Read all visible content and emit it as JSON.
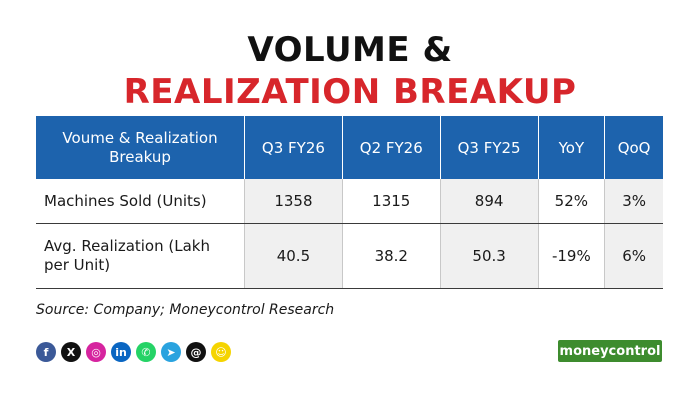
{
  "header": {
    "title_line1": "VOLUME &",
    "title_line2": "REALIZATION BREAKUP"
  },
  "chart_data": {
    "type": "table",
    "columns": [
      "Voume & Realization Breakup",
      "Q3 FY26",
      "Q2 FY26",
      "Q3 FY25",
      "YoY",
      "QoQ"
    ],
    "rows": [
      {
        "label": "Machines Sold (Units)",
        "values": [
          "1358",
          "1315",
          "894",
          "52%",
          "3%"
        ]
      },
      {
        "label": "Avg. Realization (Lakh per Unit)",
        "values": [
          "40.5",
          "38.2",
          "50.3",
          "-19%",
          "6%"
        ]
      }
    ]
  },
  "source": "Source: Company; Moneycontrol Research",
  "social_icons": [
    {
      "name": "facebook-icon",
      "glyph": "f",
      "color": "#3b5998"
    },
    {
      "name": "x-icon",
      "glyph": "X",
      "color": "#111111"
    },
    {
      "name": "instagram-icon",
      "glyph": "◎",
      "color": "#d6249f"
    },
    {
      "name": "linkedin-icon",
      "glyph": "in",
      "color": "#0a66c2"
    },
    {
      "name": "whatsapp-icon",
      "glyph": "✆",
      "color": "#25d366"
    },
    {
      "name": "telegram-icon",
      "glyph": "➤",
      "color": "#2aa3df"
    },
    {
      "name": "threads-icon",
      "glyph": "@",
      "color": "#111111"
    },
    {
      "name": "snapchat-icon",
      "glyph": "☺",
      "color": "#f5d400"
    }
  ],
  "brand": "moneycontrol",
  "colors": {
    "header_blue": "#1d63ad",
    "title_red": "#d7262b",
    "brand_green": "#3d8c2e"
  }
}
